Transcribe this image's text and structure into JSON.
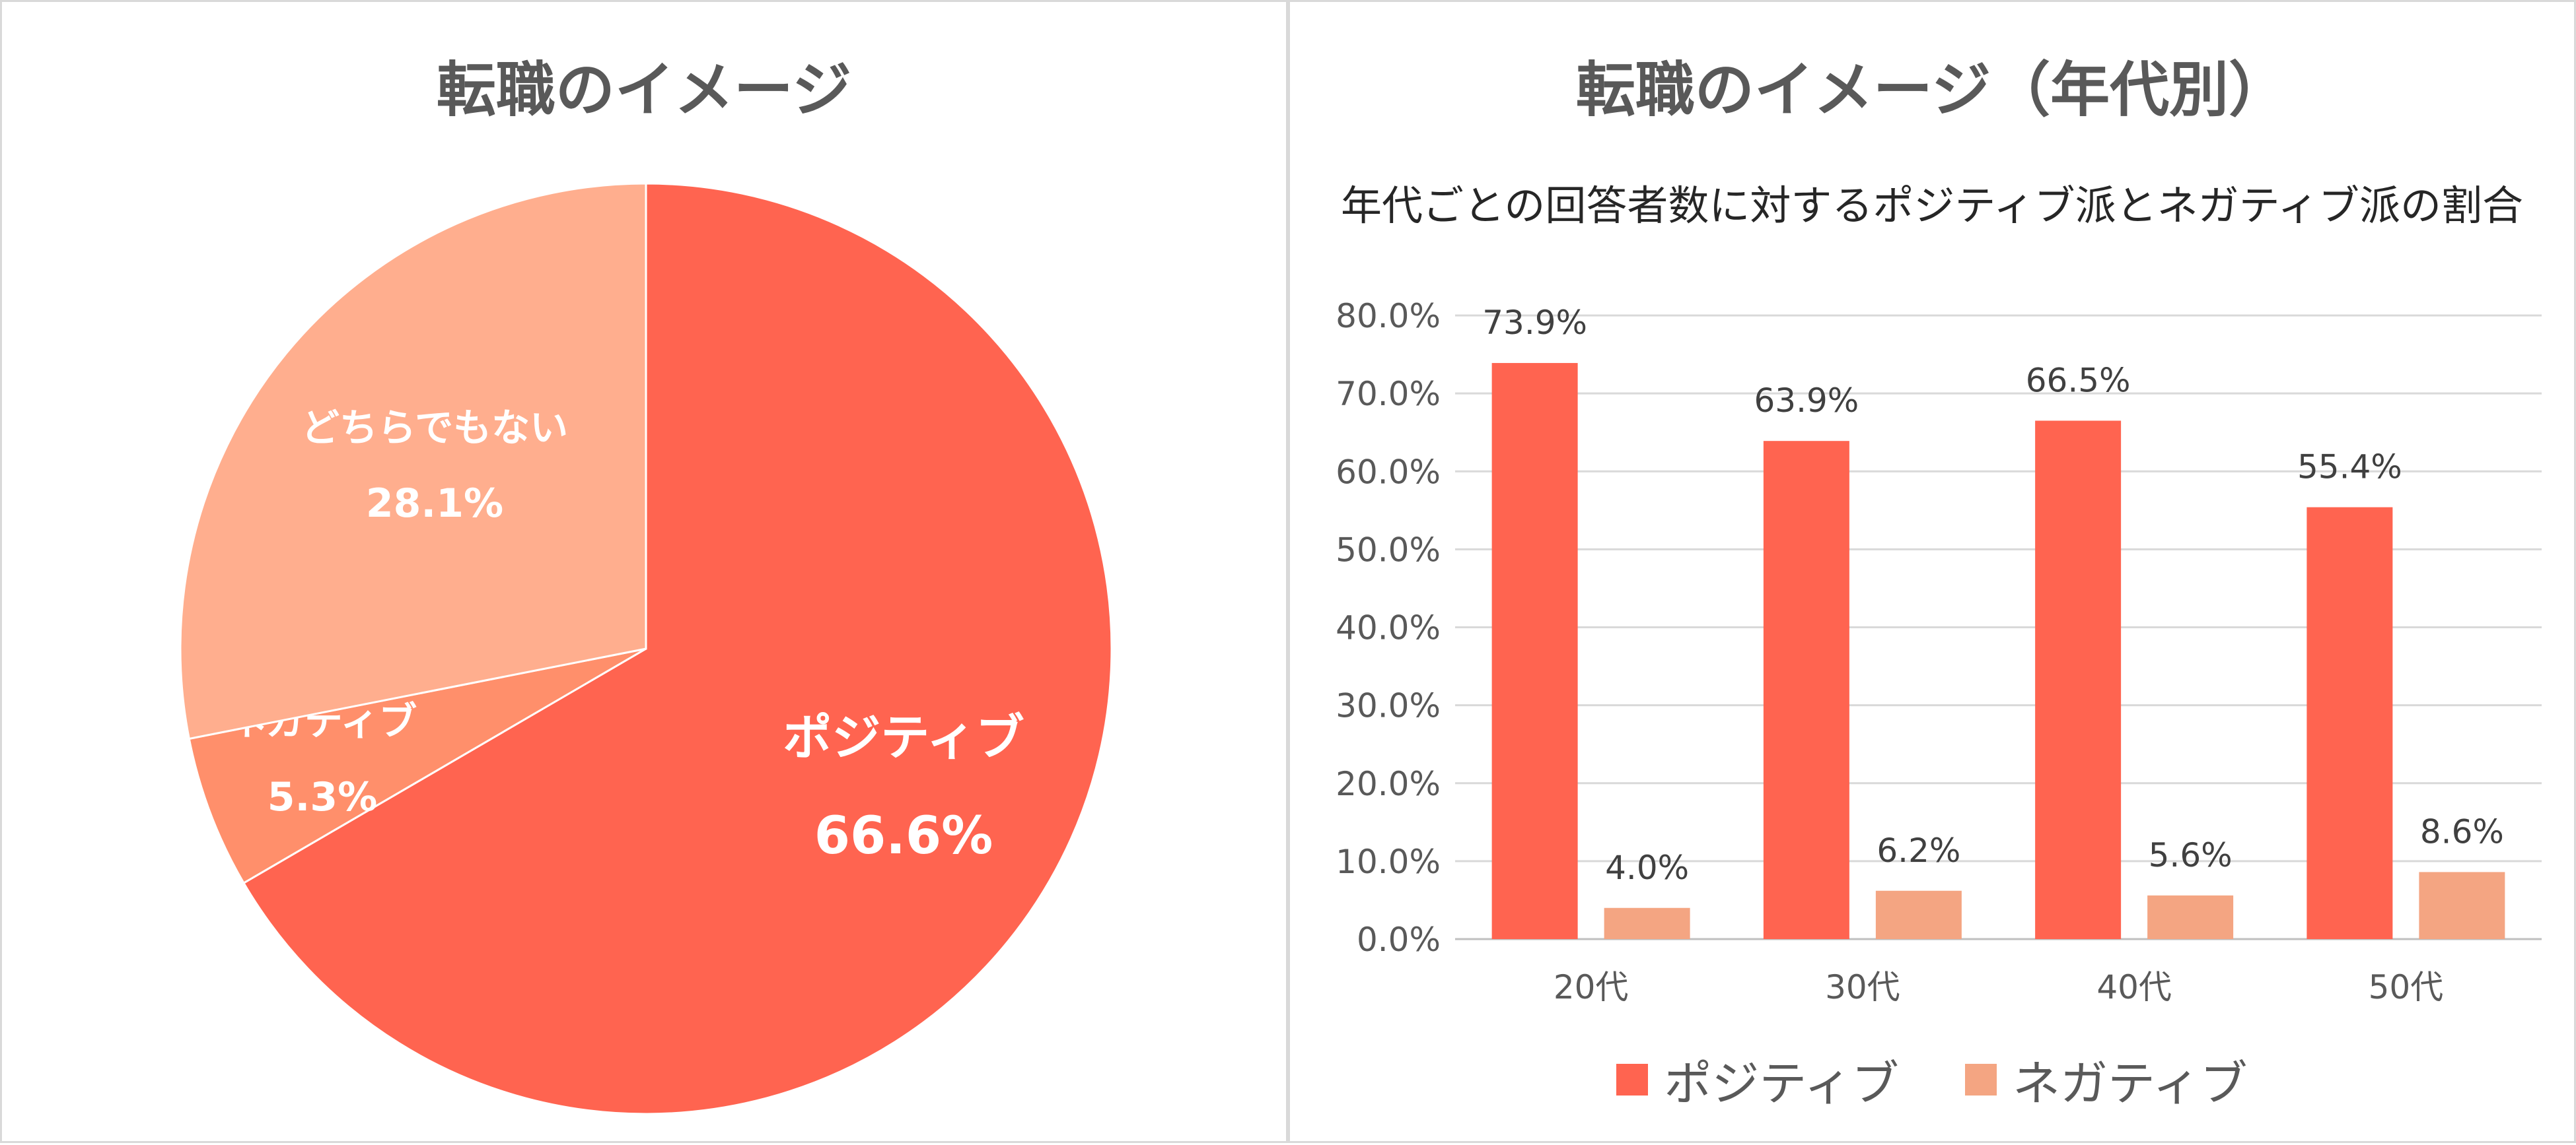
{
  "colors": {
    "positive": "#FF6450",
    "negative": "#FF8F6B",
    "neither": "#FFAE8E",
    "bar_negative": "#F4A582"
  },
  "chart_data": [
    {
      "type": "pie",
      "title": "転職のイメージ",
      "slices": [
        {
          "label": "ポジティブ",
          "value": 66.6,
          "value_label": "66.6%",
          "color": "#FF6450"
        },
        {
          "label": "ネガティブ",
          "value": 5.3,
          "value_label": "5.3%",
          "color": "#FF8F6B"
        },
        {
          "label": "どちらでもない",
          "value": 28.1,
          "value_label": "28.1%",
          "color": "#FFAE8E"
        }
      ]
    },
    {
      "type": "bar",
      "title": "転職のイメージ（年代別）",
      "subtitle": "年代ごとの回答者数に対するポジティブ派とネガティブ派の割合",
      "categories": [
        "20代",
        "30代",
        "40代",
        "50代"
      ],
      "series": [
        {
          "name": "ポジティブ",
          "values": [
            73.9,
            63.9,
            66.5,
            55.4
          ],
          "labels": [
            "73.9%",
            "63.9%",
            "66.5%",
            "55.4%"
          ],
          "color": "#FF6450"
        },
        {
          "name": "ネガティブ",
          "values": [
            4.0,
            6.2,
            5.6,
            8.6
          ],
          "labels": [
            "4.0%",
            "6.2%",
            "5.6%",
            "8.6%"
          ],
          "color": "#F4A582"
        }
      ],
      "ylim": [
        0,
        80
      ],
      "yticks": [
        "0.0%",
        "10.0%",
        "20.0%",
        "30.0%",
        "40.0%",
        "50.0%",
        "60.0%",
        "70.0%",
        "80.0%"
      ],
      "grid": true,
      "legend": "bottom"
    }
  ]
}
